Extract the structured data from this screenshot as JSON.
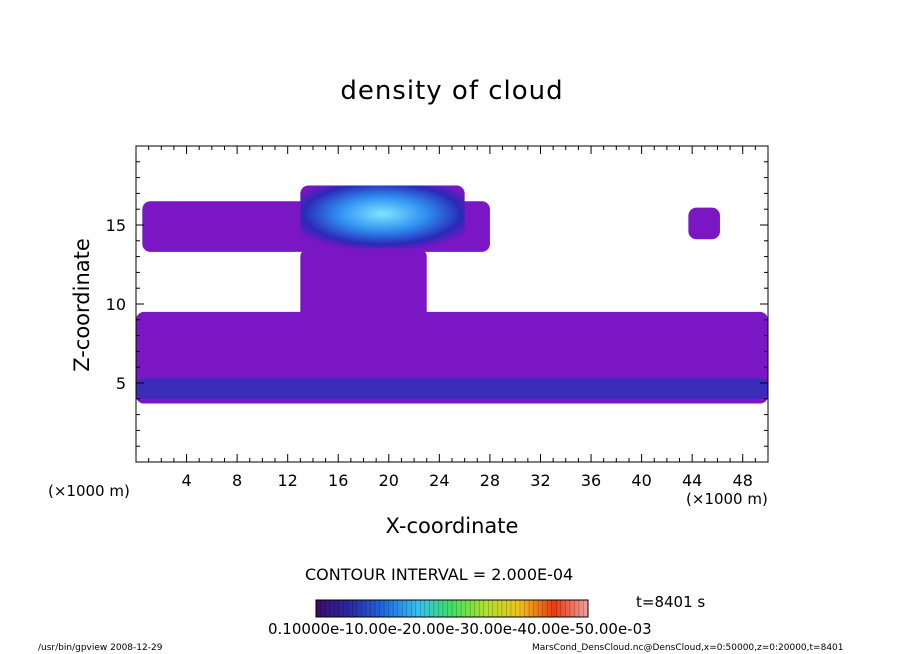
{
  "chart_data": {
    "type": "heatmap",
    "title": "density of cloud",
    "xlabel": "X-coordinate",
    "ylabel": "Z-coordinate",
    "x_unit_label": "(×1000 m)",
    "y_unit_label": "(×1000 m)",
    "xlim": [
      0,
      50
    ],
    "ylim": [
      0,
      20
    ],
    "x_ticks": [
      4,
      8,
      12,
      16,
      20,
      24,
      28,
      32,
      36,
      40,
      44,
      48
    ],
    "y_ticks": [
      5,
      10,
      15
    ],
    "contour_interval_label": "CONTOUR INTERVAL = 2.000E-04",
    "time_label": "t=8401 s",
    "colorbar_labels_text": "0.10000e-10.00e-20.00e-30.00e-40.00e-50.00e-03",
    "colorbar_range": [
      0.0001,
      0.003
    ],
    "colormap": [
      "#3b0a6e",
      "#2a2aa0",
      "#1e6be0",
      "#38c0f0",
      "#3fe060",
      "#b0e030",
      "#f0c020",
      "#e83a10",
      "#f0a0a0"
    ],
    "field_regions": [
      {
        "name": "upper cloud layer",
        "x": [
          0.5,
          28
        ],
        "z": [
          13.3,
          16.5
        ],
        "level": 0.0001
      },
      {
        "name": "core cloud",
        "x": [
          13,
          26
        ],
        "z": [
          13.5,
          17.5
        ],
        "level": 0.0006
      },
      {
        "name": "isolated patch",
        "x": [
          43.7,
          46.2
        ],
        "z": [
          14.1,
          16.1
        ],
        "level": 0.0001
      },
      {
        "name": "stem",
        "x": [
          13,
          23
        ],
        "z": [
          7,
          13.5
        ],
        "level": 0.0001
      },
      {
        "name": "lower cloud layer",
        "x": [
          0,
          50
        ],
        "z": [
          3.7,
          9.5
        ],
        "level": 0.0001
      },
      {
        "name": "lower band denser",
        "x": [
          0,
          50
        ],
        "z": [
          4,
          5.3
        ],
        "level": 0.0002
      }
    ]
  },
  "footer": {
    "left": "/usr/bin/gpview   2008-12-29",
    "right": "MarsCond_DensCloud.nc@DensCloud,x=0:50000,z=0:20000,t=8401"
  }
}
